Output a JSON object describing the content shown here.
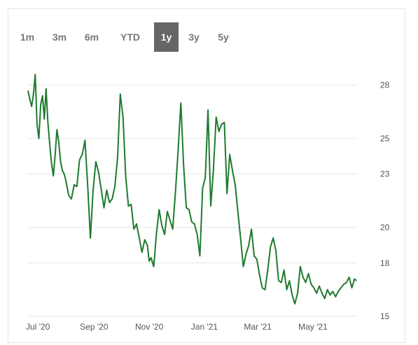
{
  "range_tabs": {
    "items": [
      {
        "label": "1m",
        "active": false
      },
      {
        "label": "3m",
        "active": false
      },
      {
        "label": "6m",
        "active": false
      },
      {
        "label": "YTD",
        "active": false
      },
      {
        "label": "1y",
        "active": true
      },
      {
        "label": "3y",
        "active": false
      },
      {
        "label": "5y",
        "active": false
      }
    ]
  },
  "colors": {
    "line": "#1f7a2e",
    "grid": "#e6e6e6",
    "active_tab_bg": "#666666",
    "tab_text": "#777777"
  },
  "chart_data": {
    "type": "line",
    "title": "",
    "xlabel": "",
    "ylabel": "",
    "x_ticks": [
      "Jul '20",
      "Sep '20",
      "Nov '20",
      "Jan '21",
      "Mar '21",
      "May '21"
    ],
    "y_ticks": [
      15,
      18,
      20,
      23,
      25,
      28
    ],
    "ylim": [
      15,
      28.5
    ],
    "grid": "horizontal",
    "y_axis_position": "right",
    "series": [
      {
        "x": [
          "2020-06-20",
          "2020-06-22",
          "2020-06-24",
          "2020-06-26",
          "2020-06-28",
          "2020-06-30",
          "2020-07-02",
          "2020-07-04",
          "2020-07-06",
          "2020-07-08",
          "2020-07-10",
          "2020-07-12",
          "2020-07-14",
          "2020-07-16",
          "2020-07-18",
          "2020-07-20",
          "2020-07-22",
          "2020-07-24",
          "2020-07-26",
          "2020-07-28",
          "2020-07-30",
          "2020-08-01",
          "2020-08-04",
          "2020-08-07",
          "2020-08-10",
          "2020-08-13",
          "2020-08-16",
          "2020-08-19",
          "2020-08-22",
          "2020-08-25",
          "2020-08-28",
          "2020-08-31",
          "2020-09-03",
          "2020-09-06",
          "2020-09-09",
          "2020-09-12",
          "2020-09-15",
          "2020-09-18",
          "2020-09-21",
          "2020-09-24",
          "2020-09-27",
          "2020-09-30",
          "2020-10-03",
          "2020-10-06",
          "2020-10-09",
          "2020-10-12",
          "2020-10-15",
          "2020-10-18",
          "2020-10-21",
          "2020-10-24",
          "2020-10-27",
          "2020-10-30",
          "2020-11-01",
          "2020-11-03",
          "2020-11-06",
          "2020-11-09",
          "2020-11-12",
          "2020-11-15",
          "2020-11-18",
          "2020-11-21",
          "2020-11-24",
          "2020-11-27",
          "2020-11-30",
          "2020-12-03",
          "2020-12-06",
          "2020-12-09",
          "2020-12-12",
          "2020-12-15",
          "2020-12-18",
          "2020-12-21",
          "2020-12-24",
          "2020-12-27",
          "2020-12-30",
          "2021-01-02",
          "2021-01-05",
          "2021-01-08",
          "2021-01-11",
          "2021-01-14",
          "2021-01-17",
          "2021-01-20",
          "2021-01-23",
          "2021-01-26",
          "2021-01-29",
          "2021-02-01",
          "2021-02-04",
          "2021-02-07",
          "2021-02-10",
          "2021-02-13",
          "2021-02-16",
          "2021-02-19",
          "2021-02-22",
          "2021-02-25",
          "2021-02-28",
          "2021-03-03",
          "2021-03-06",
          "2021-03-09",
          "2021-03-12",
          "2021-03-15",
          "2021-03-18",
          "2021-03-21",
          "2021-03-24",
          "2021-03-27",
          "2021-03-30",
          "2021-04-02",
          "2021-04-05",
          "2021-04-08",
          "2021-04-11",
          "2021-04-14",
          "2021-04-17",
          "2021-04-20",
          "2021-04-23",
          "2021-04-26",
          "2021-04-29",
          "2021-05-02",
          "2021-05-05",
          "2021-05-08",
          "2021-05-11",
          "2021-05-14",
          "2021-05-17",
          "2021-05-20",
          "2021-05-23",
          "2021-05-26",
          "2021-05-29",
          "2021-06-01",
          "2021-06-04",
          "2021-06-07",
          "2021-06-10",
          "2021-06-13",
          "2021-06-16",
          "2021-06-18"
        ],
        "values": [
          27.7,
          27.2,
          26.8,
          27.5,
          28.6,
          25.8,
          25.0,
          26.9,
          27.4,
          26.1,
          27.8,
          25.9,
          24.7,
          23.6,
          22.9,
          24.1,
          25.5,
          24.8,
          23.7,
          23.2,
          23.0,
          22.6,
          21.8,
          21.6,
          22.4,
          22.3,
          23.8,
          24.1,
          24.9,
          22.3,
          19.4,
          22.1,
          23.7,
          23.1,
          22.1,
          21.1,
          22.1,
          21.4,
          21.6,
          22.3,
          23.9,
          27.5,
          26.2,
          22.9,
          21.2,
          21.3,
          19.9,
          20.2,
          19.4,
          18.6,
          19.3,
          19.0,
          18.1,
          18.3,
          17.8,
          19.7,
          21.0,
          20.1,
          19.6,
          20.9,
          20.4,
          19.9,
          22.0,
          24.4,
          27.0,
          23.5,
          21.1,
          21.0,
          20.3,
          20.2,
          19.6,
          18.4,
          22.2,
          22.8,
          26.6,
          21.2,
          23.3,
          26.2,
          25.4,
          25.8,
          25.9,
          21.9,
          24.1,
          23.2,
          22.4,
          20.9,
          19.4,
          17.8,
          18.5,
          19.0,
          19.9,
          18.4,
          18.2,
          17.3,
          16.6,
          16.5,
          17.6,
          18.9,
          19.4,
          18.7,
          17.0,
          16.9,
          17.6,
          16.5,
          17.0,
          16.2,
          15.7,
          16.3,
          17.8,
          17.2,
          16.9,
          17.4,
          16.8,
          16.6,
          16.3,
          16.7,
          16.3,
          16.0,
          16.5,
          16.2,
          16.4,
          16.1,
          16.4,
          16.6,
          16.8,
          16.9,
          17.2,
          16.6,
          17.1,
          17.0
        ]
      }
    ]
  }
}
